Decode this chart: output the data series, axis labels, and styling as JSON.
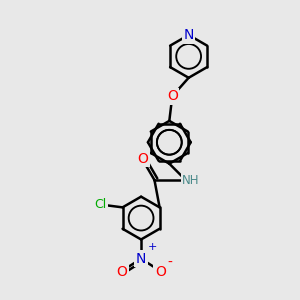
{
  "bg_color": "#e8e8e8",
  "bond_color": "#000000",
  "bond_width": 1.8,
  "atom_colors": {
    "N": "#0000cc",
    "O": "#ff0000",
    "Cl": "#00aa00",
    "C": "#000000",
    "NH": "#4a8a8a"
  },
  "font_size": 9,
  "figsize": [
    3.0,
    3.0
  ],
  "dpi": 100,
  "xlim": [
    0,
    10
  ],
  "ylim": [
    0,
    10
  ]
}
